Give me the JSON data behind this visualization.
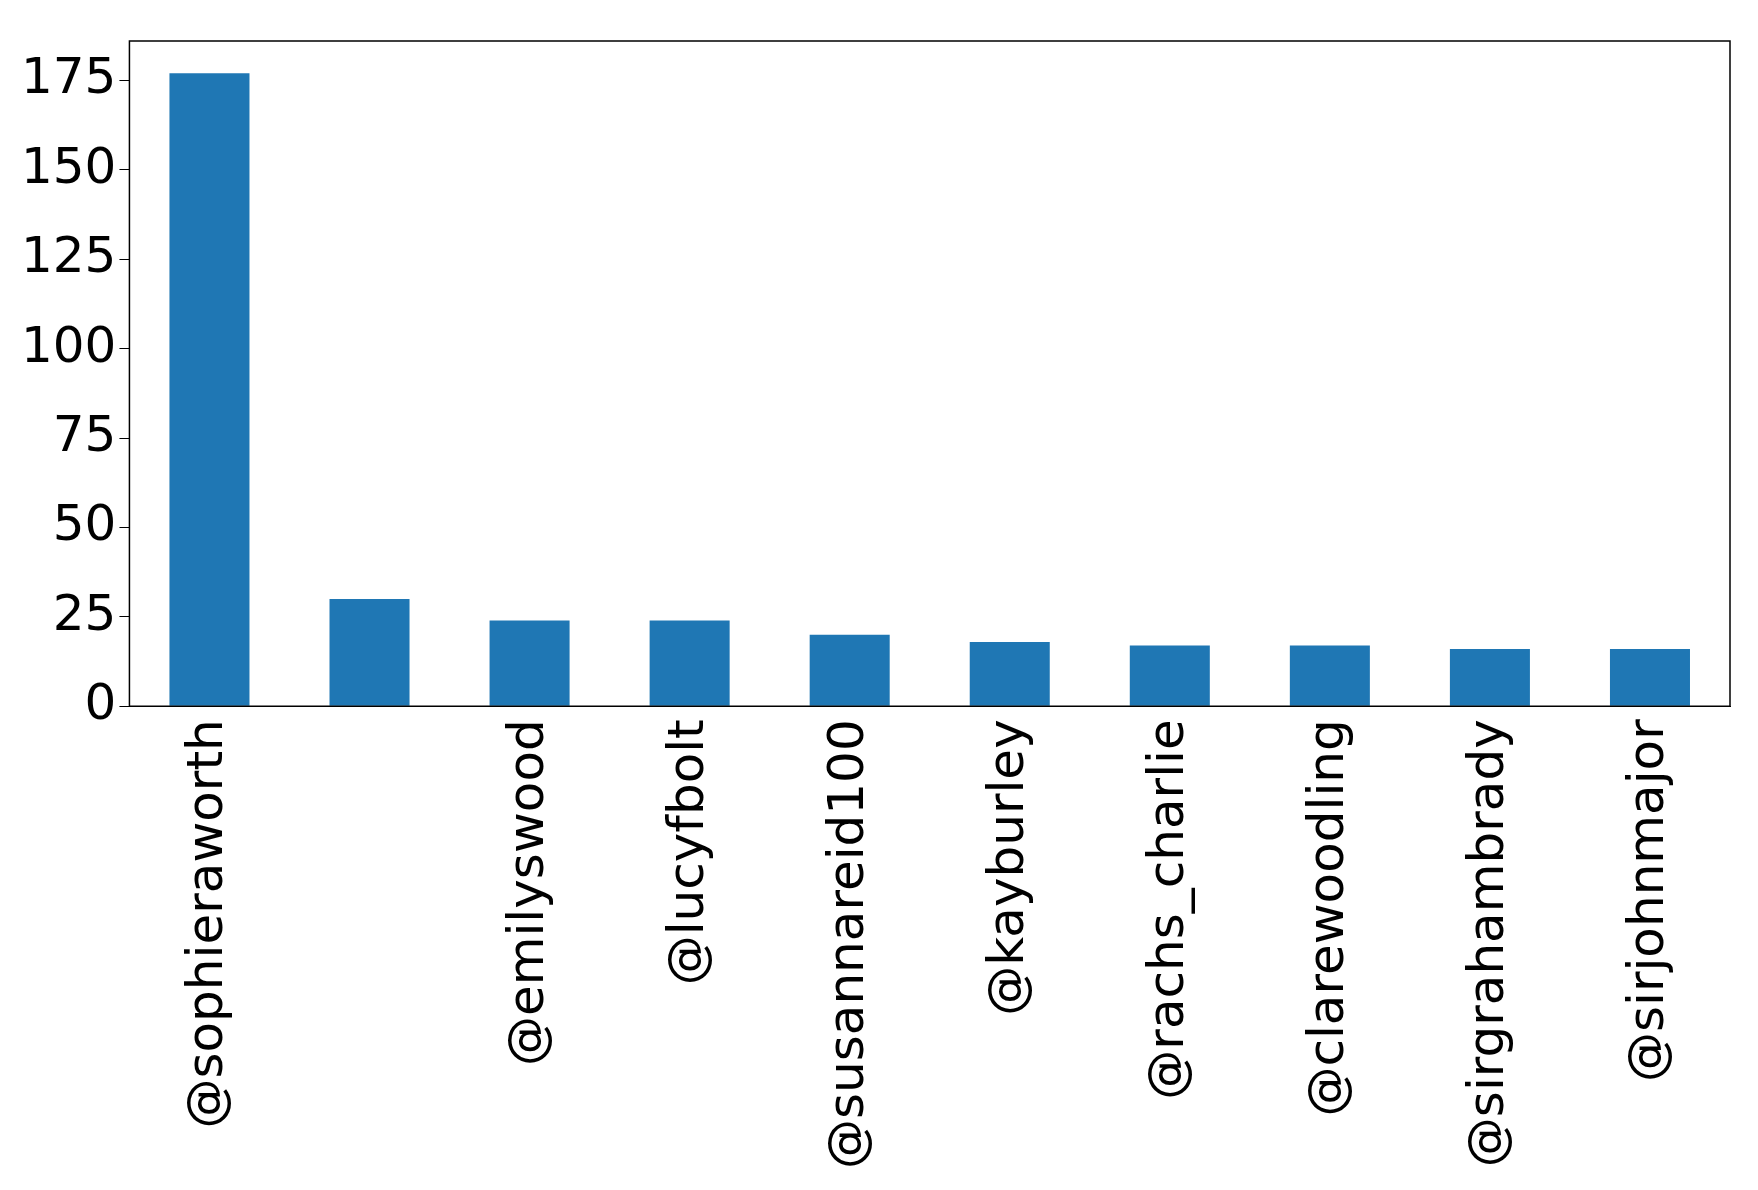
{
  "chart_data": {
    "type": "bar",
    "categories": [
      "@sophieraworth",
      null,
      "@emilyswood",
      "@lucyfbolt",
      "@susannareid100",
      "@kayburley",
      "@rachs_charlie",
      "@clarewoodling",
      "@sirgrahambrady",
      "@sirjohnmajor"
    ],
    "values": [
      177,
      30,
      24,
      24,
      20,
      18,
      17,
      17,
      16,
      16
    ],
    "color": "#1f77b4",
    "ylim": [
      0,
      186
    ],
    "yticks": [
      0,
      25,
      50,
      75,
      100,
      125,
      150,
      175
    ],
    "grid": false,
    "legend": false
  }
}
